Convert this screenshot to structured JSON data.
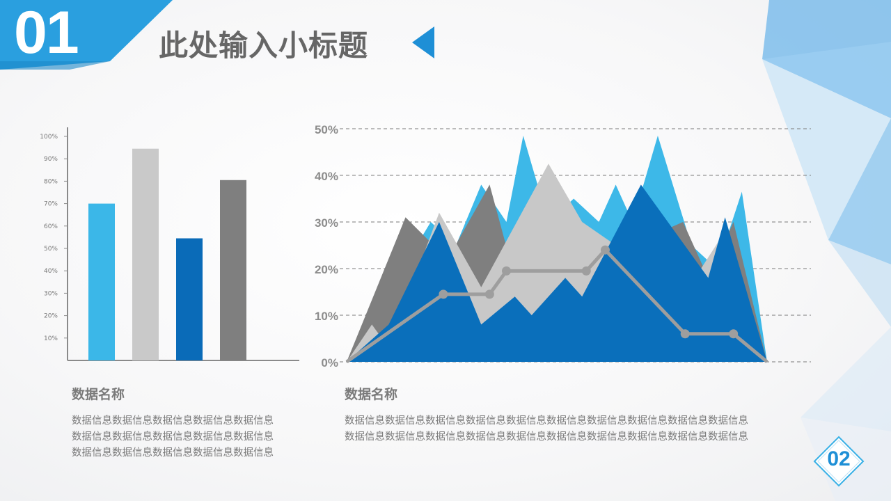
{
  "header": {
    "number": "01",
    "title": "此处输入小标题"
  },
  "colors": {
    "accent": "#2a9fdf",
    "dark_blue": "#0a6bb8",
    "light_blue": "#35b5e8",
    "gray": "#7f7f7f",
    "light_gray": "#c9c9c9"
  },
  "chart_data": [
    {
      "type": "bar",
      "categories": [
        "",
        "",
        "",
        ""
      ],
      "values": [
        70,
        94.5,
        54.5,
        80.5
      ],
      "colors": [
        "#3bb7e8",
        "#c9c9c9",
        "#0a6bb8",
        "#7f7f7f"
      ],
      "yticks": [
        "10%",
        "20%",
        "30%",
        "40%",
        "50%",
        "60%",
        "70%",
        "80%",
        "90%",
        "100%"
      ],
      "ylim": [
        0,
        100
      ],
      "grid": false
    },
    {
      "type": "area",
      "yticks": [
        "0%",
        "10%",
        "20%",
        "30%",
        "40%",
        "50%"
      ],
      "ylim": [
        0,
        50
      ],
      "x_range": [
        0,
        100
      ],
      "grid": true,
      "series": [
        {
          "color": "#3db8e8",
          "points": [
            [
              0,
              0
            ],
            [
              20,
              30
            ],
            [
              26,
              25
            ],
            [
              32,
              38
            ],
            [
              38,
              30
            ],
            [
              42,
              48.5
            ],
            [
              48,
              30
            ],
            [
              54,
              35
            ],
            [
              60,
              30
            ],
            [
              64,
              38
            ],
            [
              68,
              30
            ],
            [
              74,
              48.5
            ],
            [
              82,
              25
            ],
            [
              88,
              20
            ],
            [
              94,
              36.5
            ],
            [
              100,
              0
            ]
          ]
        },
        {
          "color": "#7f7f7f",
          "points": [
            [
              0,
              0
            ],
            [
              14,
              31
            ],
            [
              24,
              22
            ],
            [
              34,
              38
            ],
            [
              40,
              18
            ],
            [
              50,
              30
            ],
            [
              60,
              24
            ],
            [
              70,
              26
            ],
            [
              80,
              30
            ],
            [
              86,
              18
            ],
            [
              92,
              30
            ],
            [
              100,
              0
            ]
          ]
        },
        {
          "color": "#c8c8c8",
          "points": [
            [
              0,
              0
            ],
            [
              6,
              8
            ],
            [
              10,
              3
            ],
            [
              22,
              32
            ],
            [
              32,
              16
            ],
            [
              48,
              42.5
            ],
            [
              56,
              30
            ],
            [
              64,
              25
            ],
            [
              72,
              30
            ],
            [
              80,
              14
            ],
            [
              90,
              28
            ],
            [
              100,
              0
            ]
          ]
        },
        {
          "color": "#0a6fbb",
          "points": [
            [
              0,
              0
            ],
            [
              10,
              8
            ],
            [
              22,
              30
            ],
            [
              32,
              8
            ],
            [
              40,
              14
            ],
            [
              44,
              10
            ],
            [
              52,
              18
            ],
            [
              56,
              14
            ],
            [
              70,
              38
            ],
            [
              86,
              18
            ],
            [
              90,
              31
            ],
            [
              100,
              0
            ]
          ]
        }
      ],
      "line": {
        "color": "#9e9e9e",
        "values": [
          [
            0,
            0
          ],
          [
            23,
            14.5
          ],
          [
            34,
            14.5
          ],
          [
            38,
            19.5
          ],
          [
            57,
            19.5
          ],
          [
            61.5,
            24
          ],
          [
            80.5,
            6
          ],
          [
            92,
            6
          ],
          [
            100,
            0
          ]
        ]
      }
    }
  ],
  "captions": {
    "left_title": "数据名称",
    "left_lines": [
      "数据信息数据信息数据信息数据信息数据信息",
      "数据信息数据信息数据信息数据信息数据信息",
      "数据信息数据信息数据信息数据信息数据信息"
    ],
    "right_title": "数据名称",
    "right_lines": [
      "数据信息数据信息数据信息数据信息数据信息数据信息数据信息数据信息数据信息数据信息",
      "数据信息数据信息数据信息数据信息数据信息数据信息数据信息数据信息数据信息数据信息"
    ]
  },
  "page_badge": "02"
}
